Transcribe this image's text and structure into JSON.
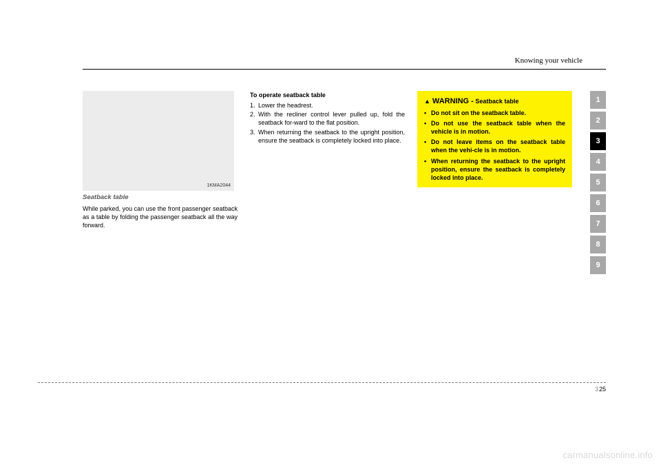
{
  "header": {
    "section_title": "Knowing your vehicle"
  },
  "column1": {
    "image_code": "1KMA2044",
    "subheading": "Seatback table",
    "body": "While parked, you can use the front passenger seatback as a table by folding the passenger seatback all the way forward."
  },
  "column2": {
    "heading": "To operate seatback table",
    "items": [
      {
        "num": "1.",
        "text": "Lower the headrest."
      },
      {
        "num": "2.",
        "text": "With the recliner control lever pulled up, fold the seatback for-ward to the flat position."
      },
      {
        "num": "3.",
        "text": "When returning the seatback to the upright position, ensure the seatback is completely locked into place."
      }
    ]
  },
  "warning": {
    "icon": "▲",
    "title": "WARNING -",
    "subtitle": "Seatback table",
    "bullets": [
      "Do not sit on the seatback table.",
      "Do not use the seatback table when the vehicle is in motion.",
      "Do not leave items on the seatback table when the vehi-cle is in motion.",
      "When returning the seatback to the upright position, ensure the seatback is completely locked into place."
    ]
  },
  "tabs": {
    "items": [
      "1",
      "2",
      "3",
      "4",
      "5",
      "6",
      "7",
      "8",
      "9"
    ],
    "active_index": 2,
    "colors": {
      "inactive_bg": "#a8a8a8",
      "active_bg": "#000000",
      "text": "#ffffff"
    }
  },
  "footer": {
    "section_num": "3",
    "page_num": "25"
  },
  "watermark": "carmanualsonline.info",
  "warning_box_color": "#fff200"
}
